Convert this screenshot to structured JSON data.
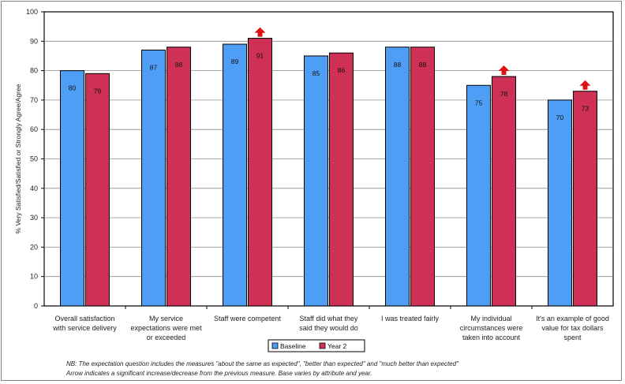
{
  "chart_data": {
    "type": "bar",
    "ylabel": "% Very Satisfied/Satisfied or Strongly Agree/Agree",
    "ylim": [
      0,
      100
    ],
    "ytick_step": 10,
    "grid": true,
    "categories": [
      [
        "Overall satisfaction",
        "with service delivery"
      ],
      [
        "My service",
        "expectations were met",
        "or exceeded"
      ],
      [
        "Staff were competent"
      ],
      [
        "Staff did what they",
        "said they would do"
      ],
      [
        "I was treated fairly"
      ],
      [
        "My individual",
        "circumstances were",
        "taken into account"
      ],
      [
        "It's an example of good",
        "value for tax dollars",
        "spent"
      ]
    ],
    "series": [
      {
        "name": "Baseline",
        "color": "#4f9ef5",
        "values": [
          80,
          87,
          89,
          85,
          88,
          75,
          70
        ]
      },
      {
        "name": "Year 2",
        "color": "#cf3055",
        "values": [
          79,
          88,
          91,
          86,
          88,
          78,
          73
        ]
      }
    ],
    "significant_increase": [
      false,
      false,
      true,
      false,
      false,
      true,
      true
    ],
    "arrow_color": "#e01010",
    "legend_position": "bottom",
    "notes": [
      "NB: The expectation question includes the measures \"about the same as expected\", \"better than expected\" and \"much better than expected\"",
      "Arrow indicates a significant increase/decrease from the previous measure.      Base varies by attribute and year."
    ]
  }
}
